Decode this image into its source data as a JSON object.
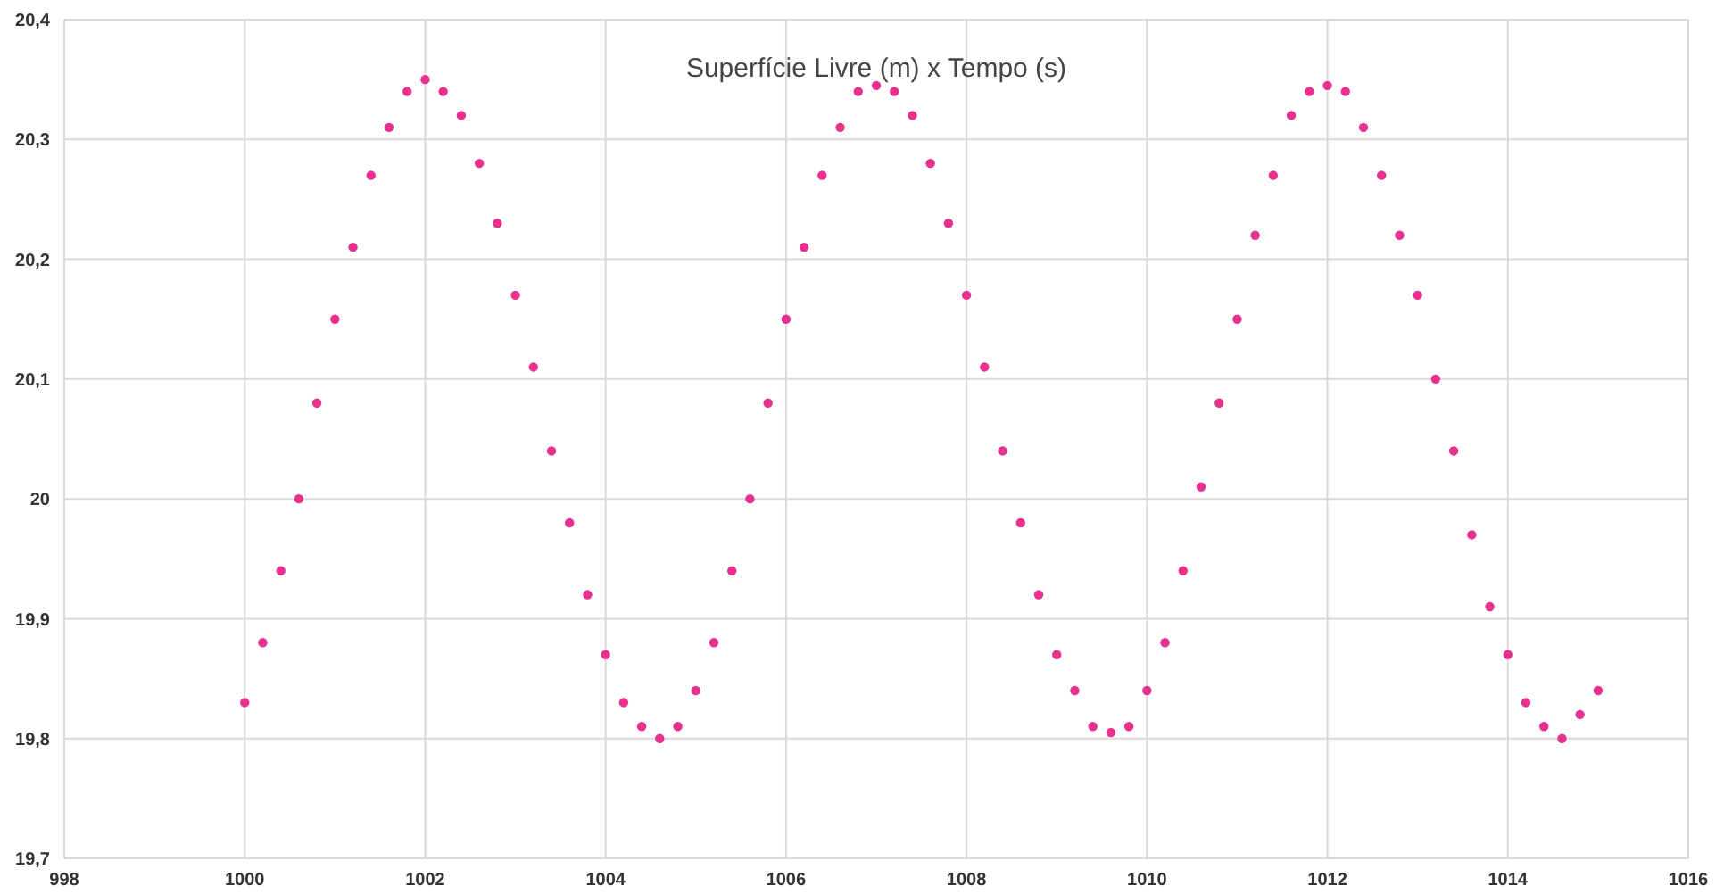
{
  "chart_data": {
    "type": "scatter",
    "title": "Superfície Livre (m) x Tempo (s)",
    "marker": "circle",
    "grid": true,
    "legend": false,
    "xlim": [
      998,
      1016
    ],
    "xticks": [
      998,
      1000,
      1002,
      1004,
      1006,
      1008,
      1010,
      1012,
      1014,
      1016
    ],
    "ylim": [
      19.7,
      20.4
    ],
    "yticks": [
      {
        "value": 19.7,
        "label": "19,7"
      },
      {
        "value": 19.8,
        "label": "19,8"
      },
      {
        "value": 19.9,
        "label": "19,9"
      },
      20,
      {
        "value": 20.1,
        "label": "20,1"
      },
      {
        "value": 20.2,
        "label": "20,2"
      },
      {
        "value": 20.3,
        "label": "20,3"
      },
      {
        "value": 20.4,
        "label": "20,4"
      }
    ],
    "x": [
      1000,
      1000.2,
      1000.4,
      1000.6,
      1000.8,
      1001,
      1001.2,
      1001.4,
      1001.6,
      1001.8,
      1002,
      1002.2,
      1002.4,
      1002.6,
      1002.8,
      1003,
      1003.2,
      1003.4,
      1003.6,
      1003.8,
      1004,
      1004.2,
      1004.4,
      1004.6,
      1004.8,
      1005,
      1005.2,
      1005.4,
      1005.6,
      1005.8,
      1006,
      1006.2,
      1006.4,
      1006.6,
      1006.8,
      1007,
      1007.2,
      1007.4,
      1007.6,
      1007.8,
      1008,
      1008.2,
      1008.4,
      1008.6,
      1008.8,
      1009,
      1009.2,
      1009.4,
      1009.6,
      1009.8,
      1010,
      1010.2,
      1010.4,
      1010.6,
      1010.8,
      1011,
      1011.2,
      1011.4,
      1011.6,
      1011.8,
      1012,
      1012.2,
      1012.4,
      1012.6,
      1012.8,
      1013,
      1013.2,
      1013.4,
      1013.6,
      1013.8,
      1014,
      1014.2,
      1014.4,
      1014.6,
      1014.8,
      1015
    ],
    "series": [
      {
        "color": "#e8308f",
        "values": [
          19.83,
          19.88,
          19.94,
          20.0,
          20.08,
          20.15,
          20.21,
          20.27,
          20.31,
          20.34,
          20.35,
          20.34,
          20.32,
          20.28,
          20.23,
          20.17,
          20.11,
          20.04,
          19.98,
          19.92,
          19.87,
          19.83,
          19.81,
          19.8,
          19.81,
          19.84,
          19.88,
          19.94,
          20.0,
          20.08,
          20.15,
          20.21,
          20.27,
          20.31,
          20.34,
          20.345,
          20.34,
          20.32,
          20.28,
          20.23,
          20.17,
          20.11,
          20.04,
          19.98,
          19.92,
          19.87,
          19.84,
          19.81,
          19.805,
          19.81,
          19.84,
          19.88,
          19.94,
          20.01,
          20.08,
          20.15,
          20.22,
          20.27,
          20.32,
          20.34,
          20.345,
          20.34,
          20.31,
          20.27,
          20.22,
          20.17,
          20.1,
          20.04,
          19.97,
          19.91,
          19.87,
          19.83,
          19.81,
          19.8,
          19.82,
          19.84
        ]
      }
    ]
  }
}
